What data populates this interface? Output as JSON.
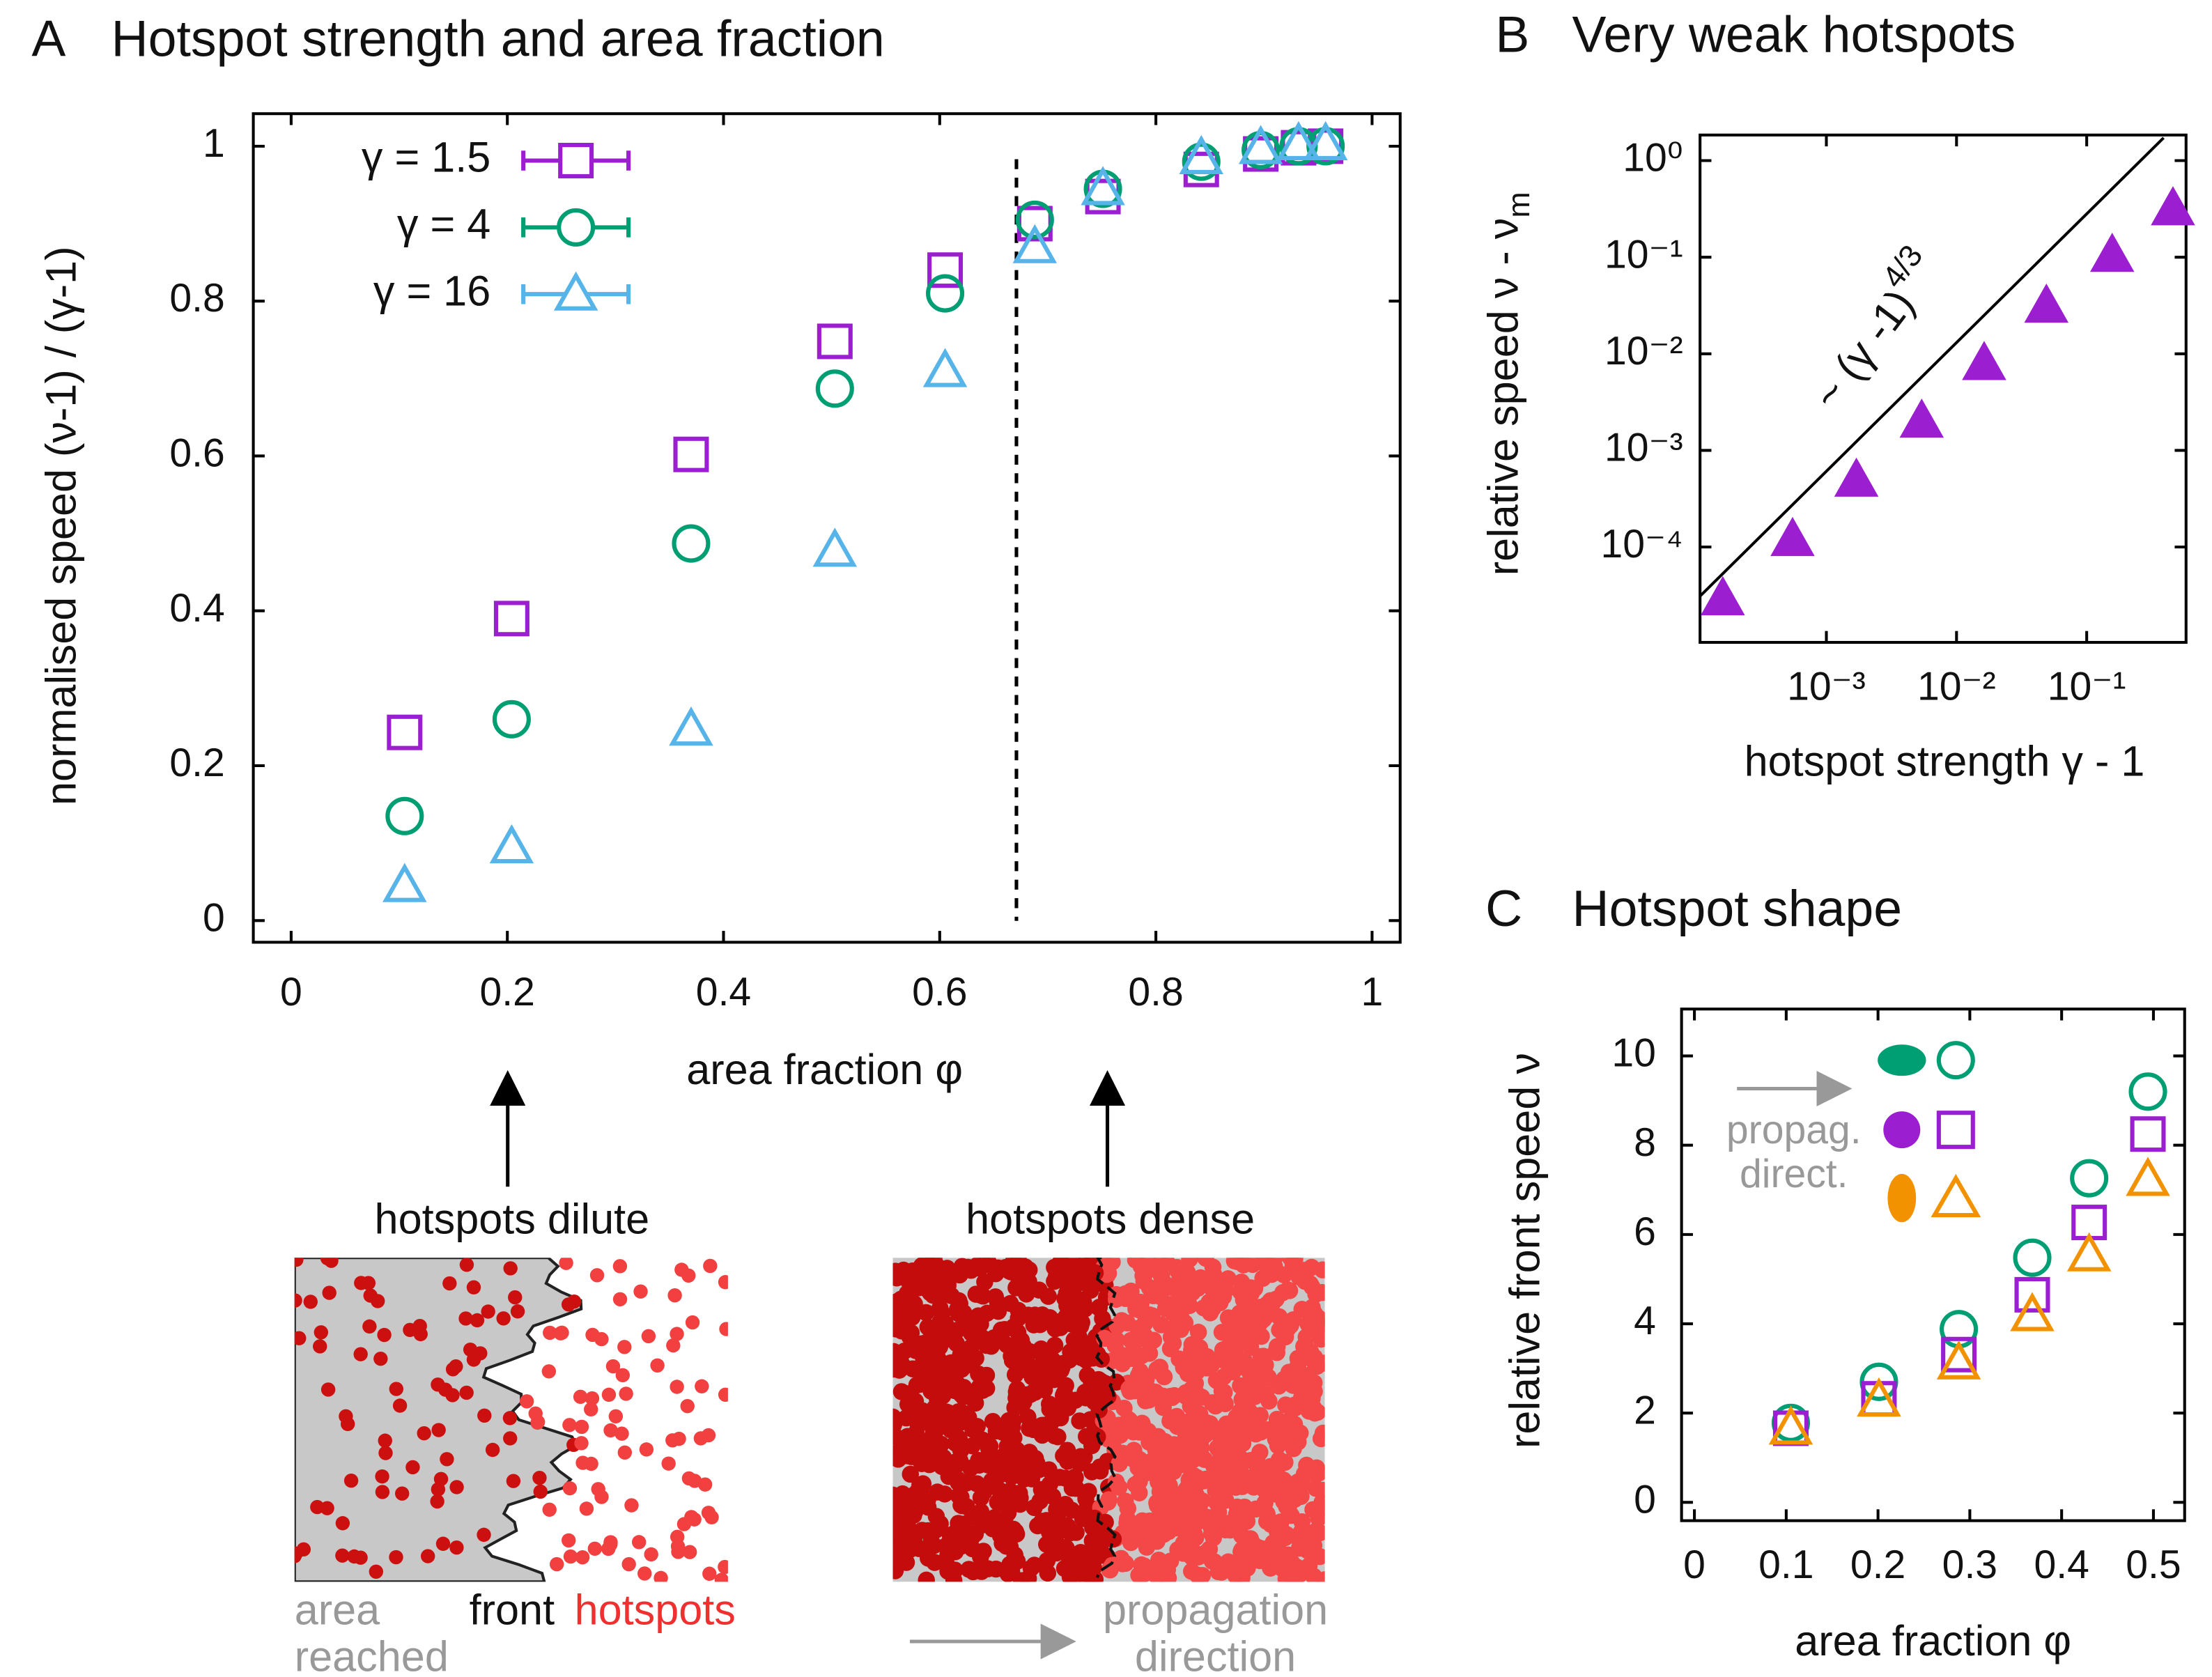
{
  "chart_data": [
    {
      "type": "scatter",
      "panel": "A",
      "title": "Hotspot strength and area fraction",
      "xlabel": "area fraction  φ",
      "ylabel": "normalised speed  (ν-1) / (γ-1)",
      "xlim": [
        -0.035,
        1.026
      ],
      "ylim": [
        -0.028,
        1.042
      ],
      "xticks": [
        0,
        0.2,
        0.4,
        0.6,
        0.8,
        1
      ],
      "yticks": [
        0,
        0.2,
        0.4,
        0.6,
        0.8,
        1
      ],
      "vline": 0.671,
      "legend": "upper left",
      "series": [
        {
          "name": "γ = 1.5",
          "color": "#9b1fd0",
          "marker": "square",
          "x": [
            0.105,
            0.204,
            0.37,
            0.503,
            0.605,
            0.688,
            0.751,
            0.842,
            0.897,
            0.932,
            0.957
          ],
          "values": [
            0.243,
            0.39,
            0.602,
            0.748,
            0.84,
            0.9,
            0.935,
            0.97,
            0.99,
            0.998,
            1.0
          ]
        },
        {
          "name": "γ = 4",
          "color": "#009e73",
          "marker": "circle",
          "x": [
            0.105,
            0.204,
            0.37,
            0.503,
            0.605,
            0.688,
            0.751,
            0.842,
            0.897,
            0.932,
            0.957
          ],
          "values": [
            0.135,
            0.26,
            0.487,
            0.687,
            0.81,
            0.905,
            0.945,
            0.98,
            0.995,
            1.0,
            1.0
          ]
        },
        {
          "name": "γ = 16",
          "color": "#56b4e9",
          "marker": "triangle",
          "x": [
            0.105,
            0.204,
            0.37,
            0.503,
            0.605,
            0.688,
            0.751,
            0.842,
            0.897,
            0.932,
            0.957
          ],
          "values": [
            0.045,
            0.095,
            0.247,
            0.478,
            0.71,
            0.87,
            0.945,
            0.985,
            0.998,
            1.003,
            1.003
          ]
        }
      ]
    },
    {
      "type": "scatter",
      "panel": "B",
      "title": "Very weak hotspots",
      "xlabel": "hotspot strength  γ - 1",
      "ylabel": "relative speed  ν - ν",
      "ylabel_sub": "m",
      "xscale": "log",
      "yscale": "log",
      "xlim": [
        0.000107,
        0.58
      ],
      "ylim": [
        1.03e-05,
        1.84
      ],
      "xticks": [
        {
          "value": 0.001,
          "label": "10⁻³"
        },
        {
          "value": 0.01,
          "label": "10⁻²"
        },
        {
          "value": 0.1,
          "label": "10⁻¹"
        }
      ],
      "yticks": [
        {
          "value": 0.0001,
          "label": "10⁻⁴"
        },
        {
          "value": 0.001,
          "label": "10⁻³"
        },
        {
          "value": 0.01,
          "label": "10⁻²"
        },
        {
          "value": 0.1,
          "label": "10⁻¹"
        },
        {
          "value": 1,
          "label": "10⁰"
        }
      ],
      "fit": {
        "label": "~ (γ -1)",
        "label_exponent": "4/3",
        "x": [
          0.000107,
          0.39
        ],
        "y": [
          3.1e-05,
          1.72
        ]
      },
      "series": [
        {
          "color": "#9b1fd0",
          "marker": "triangle",
          "filled": true,
          "x": [
            0.00016,
            0.00055,
            0.0017,
            0.0054,
            0.0163,
            0.049,
            0.157,
            0.46
          ],
          "values": [
            2.9e-05,
            0.000119,
            0.00049,
            0.002,
            0.0079,
            0.031,
            0.104,
            0.316
          ]
        }
      ]
    },
    {
      "type": "scatter",
      "panel": "C",
      "title": "Hotspot shape",
      "xlabel": "area fraction  φ",
      "ylabel": "relative front speed  ν",
      "xlim": [
        -0.014,
        0.534
      ],
      "ylim": [
        -0.41,
        11.05
      ],
      "xticks": [
        0,
        0.1,
        0.2,
        0.3,
        0.4,
        0.5
      ],
      "yticks": [
        0,
        2,
        4,
        6,
        8,
        10
      ],
      "legend_note": [
        "propag.",
        "direct."
      ],
      "series": [
        {
          "color": "#009e73",
          "marker": "circle",
          "x": [
            0.105,
            0.201,
            0.288,
            0.368,
            0.43,
            0.494
          ],
          "values": [
            1.78,
            2.7,
            3.88,
            5.48,
            7.26,
            9.2
          ]
        },
        {
          "color": "#9b1fd0",
          "marker": "square",
          "x": [
            0.105,
            0.201,
            0.288,
            0.368,
            0.43,
            0.494
          ],
          "values": [
            1.66,
            2.32,
            3.31,
            4.65,
            6.27,
            8.25
          ]
        },
        {
          "color": "#f39200",
          "marker": "triangle",
          "x": [
            0.105,
            0.201,
            0.288,
            0.368,
            0.43,
            0.494
          ],
          "values": [
            1.66,
            2.29,
            3.12,
            4.2,
            5.54,
            7.23
          ]
        }
      ]
    }
  ],
  "insets": [
    {
      "caption": "hotspots dilute",
      "labels": [
        "area",
        "reached",
        "front",
        "hotspots"
      ]
    },
    {
      "caption": "hotspots dense",
      "labels": [
        "propagation",
        "direction"
      ]
    }
  ]
}
